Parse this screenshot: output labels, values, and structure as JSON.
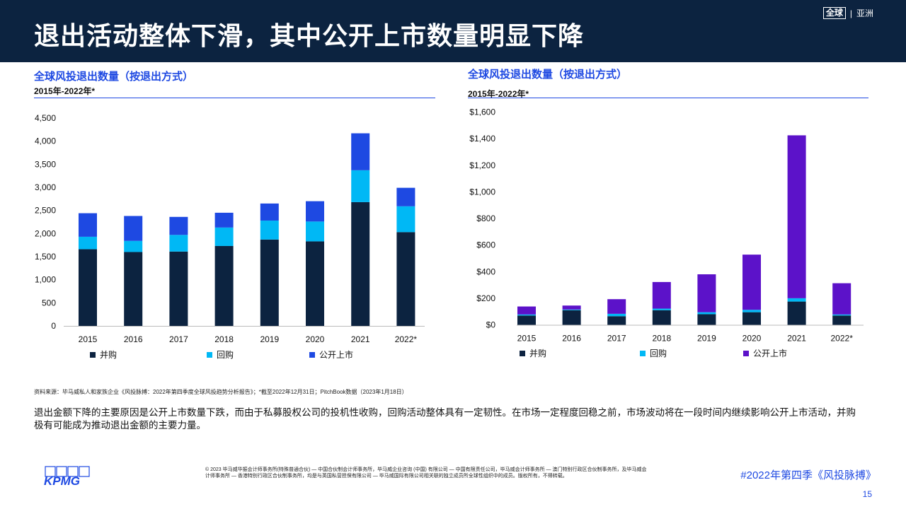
{
  "header": {
    "title": "退出活动整体下滑，其中公开上市数量明显下降",
    "badge_global": "全球",
    "badge_sep": "|",
    "badge_region": "亚洲"
  },
  "charts": [
    {
      "title": "全球风投退出数量（按退出方式）",
      "subtitle": "2015年-2022年*"
    },
    {
      "title": "全球风投退出数量（按退出方式）",
      "subtitle": "2015年-2022年*"
    }
  ],
  "chart_data": [
    {
      "type": "bar",
      "stacked": true,
      "title": "全球风投退出数量（按退出方式）",
      "subtitle": "2015年-2022年*",
      "categories": [
        "2015",
        "2016",
        "2017",
        "2018",
        "2019",
        "2020",
        "2021",
        "2022*"
      ],
      "series": [
        {
          "name": "并购",
          "color": "#0c2340",
          "values": [
            1660,
            1600,
            1610,
            1730,
            1870,
            1830,
            2680,
            2030
          ]
        },
        {
          "name": "回购",
          "color": "#00b8f5",
          "values": [
            270,
            240,
            360,
            400,
            410,
            430,
            690,
            560
          ]
        },
        {
          "name": "公开上市",
          "color": "#1e49e2",
          "values": [
            510,
            540,
            390,
            320,
            370,
            440,
            800,
            400
          ]
        }
      ],
      "ylim": [
        0,
        4500
      ],
      "yticks": [
        0,
        500,
        1000,
        1500,
        2000,
        2500,
        3000,
        3500,
        4000,
        4500
      ],
      "ytick_labels": [
        "0",
        "500",
        "1,000",
        "1,500",
        "2,000",
        "2,500",
        "3,000",
        "3,500",
        "4,000",
        "4,500"
      ],
      "grid": false,
      "legend": "bottom"
    },
    {
      "type": "bar",
      "stacked": true,
      "title": "全球风投退出数量（按退出方式）",
      "subtitle": "2015年-2022年*",
      "categories": [
        "2015",
        "2016",
        "2017",
        "2018",
        "2019",
        "2020",
        "2021",
        "2022*"
      ],
      "series": [
        {
          "name": "并购",
          "color": "#0c2340",
          "values": [
            70,
            110,
            65,
            110,
            80,
            95,
            175,
            70
          ]
        },
        {
          "name": "回购",
          "color": "#00b8f5",
          "values": [
            8,
            5,
            18,
            12,
            15,
            18,
            25,
            8
          ]
        },
        {
          "name": "公开上市",
          "color": "#5c12c9",
          "values": [
            60,
            30,
            110,
            200,
            285,
            415,
            1225,
            235
          ]
        }
      ],
      "ylim": [
        0,
        1600
      ],
      "yticks": [
        0,
        200,
        400,
        600,
        800,
        1000,
        1200,
        1400,
        1600
      ],
      "ytick_labels": [
        "$0",
        "$200",
        "$400",
        "$600",
        "$800",
        "$1,000",
        "$1,200",
        "$1,400",
        "$1,600"
      ],
      "grid": false,
      "legend": "bottom"
    }
  ],
  "footer": {
    "source": "资料来源：毕马威私人和家族企业《风投脉搏：2022年第四季度全球风投趋势分析报告》；*截至2022年12月31日；PitchBook数据（2023年1月18日）",
    "summary": "退出金额下降的主要原因是公开上市数量下跌，而由于私募股权公司的投机性收购，回购活动整体具有一定韧性。在市场一定程度回稳之前，市场波动将在一段时间内继续影响公开上市活动，并购极有可能成为推动退出金额的主要力量。",
    "logo_text": "KPMG",
    "legal": "© 2023 毕马威华振会计师事务所(特殊普通合伙) — 中国合伙制会计师事务所，毕马威企业咨询 (中国) 有限公司 — 中国有限责任公司，毕马威会计师事务所 — 澳门特别行政区合伙制事务所，及毕马威会计师事务所 — 香港特别行政区合伙制事务所，均是与英国私营担保有限公司 — 毕马威国际有限公司相关联的独立成员所全球性组织中的成员。版权所有，不得转载。",
    "hashtag": "#2022年第四季《风投脉搏》",
    "page_number": "15"
  }
}
